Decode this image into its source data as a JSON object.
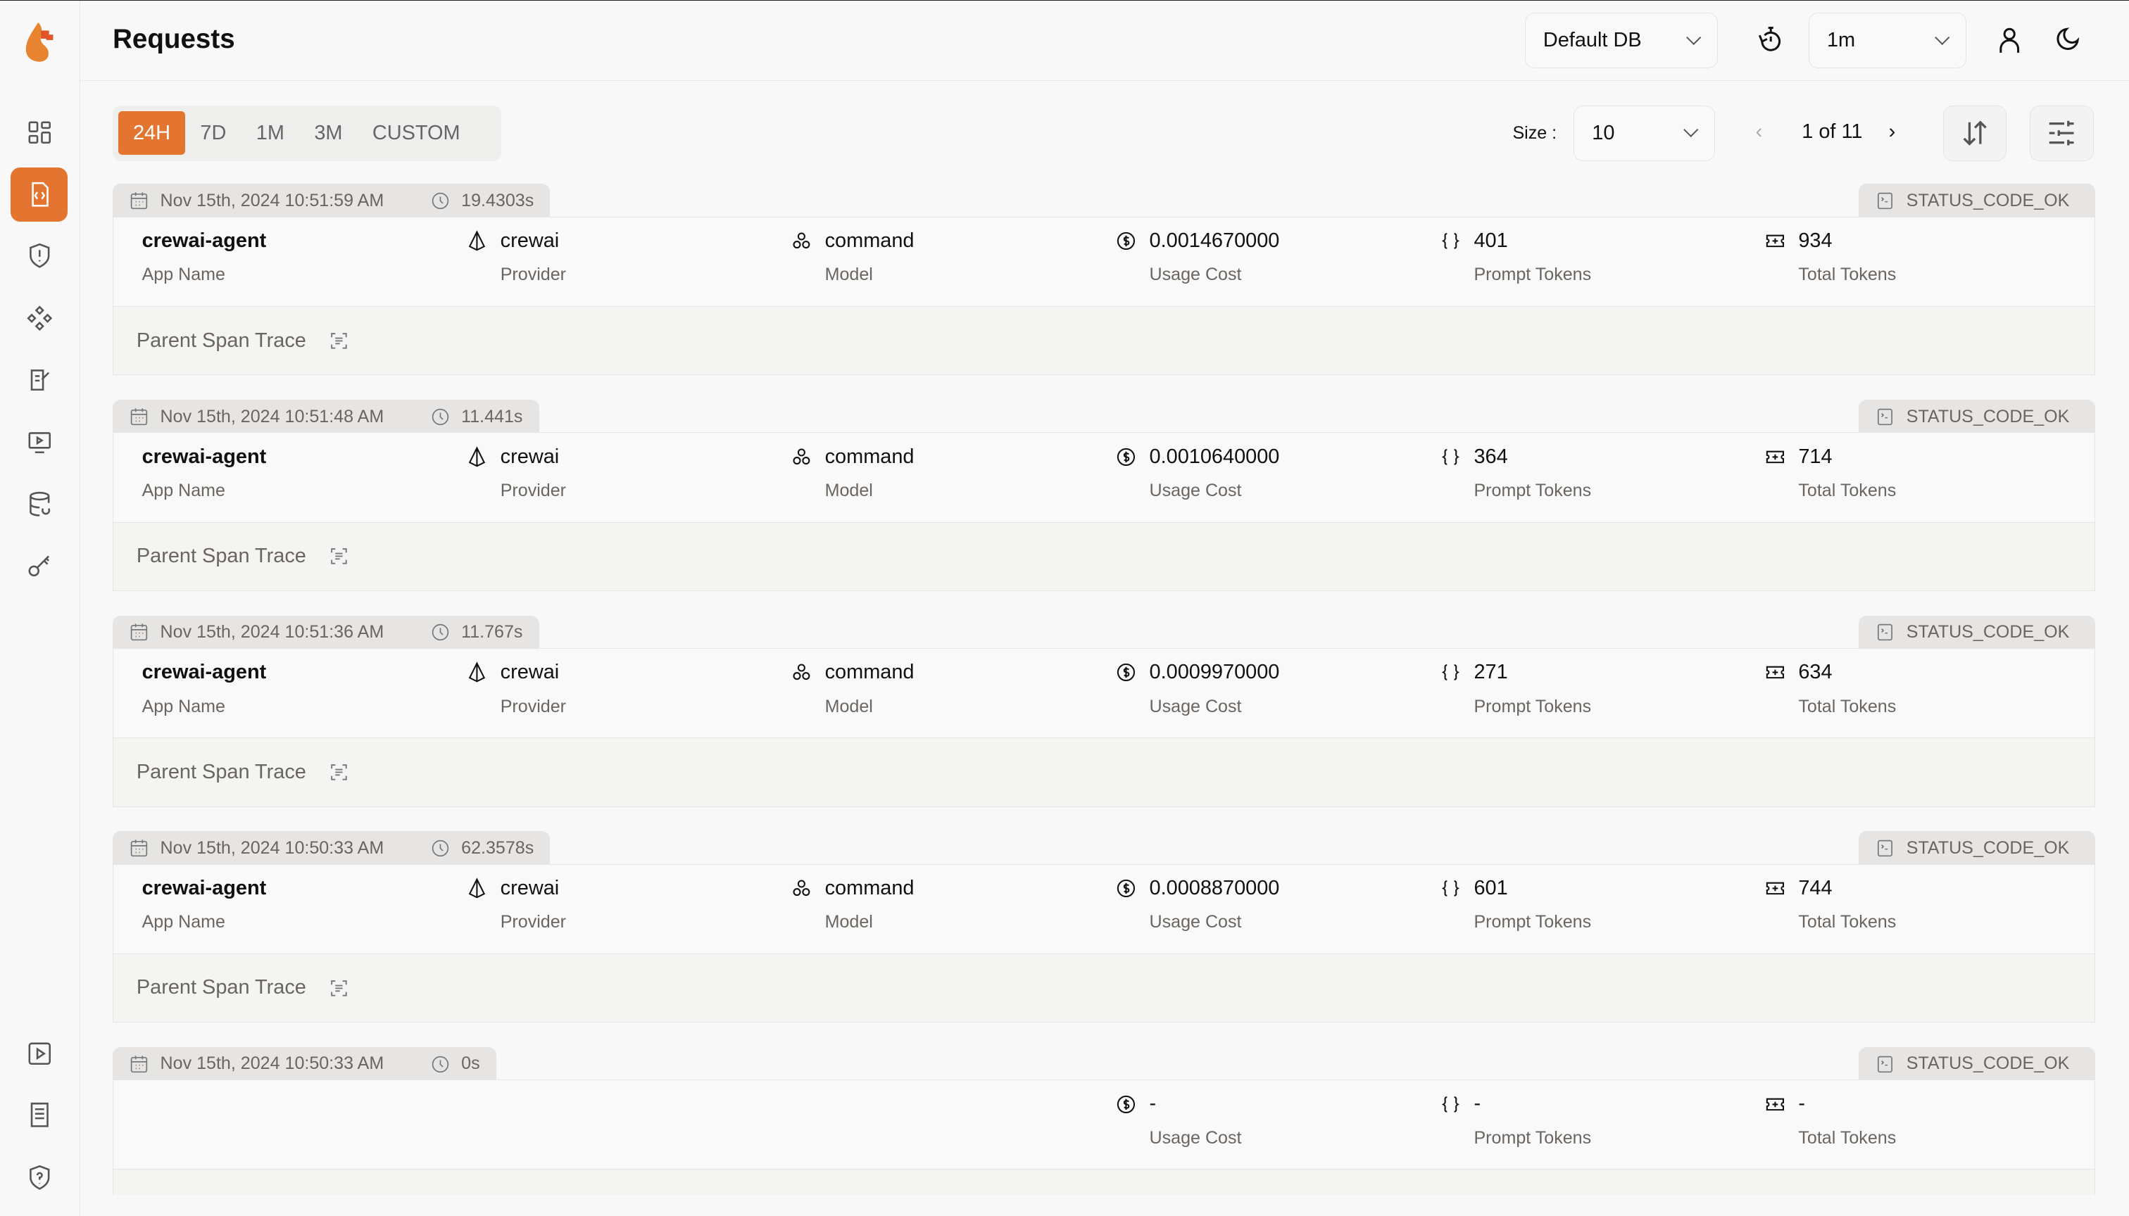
{
  "header": {
    "title": "Requests",
    "db_select": "Default DB",
    "refresh_select": "1m"
  },
  "sidebar": {
    "items": [
      "dashboard",
      "requests",
      "exceptions",
      "prompt-hub",
      "evaluations",
      "vault",
      "openground",
      "database",
      "api-keys"
    ],
    "bottom": [
      "play",
      "docs",
      "security"
    ]
  },
  "filters": {
    "ranges": [
      "24H",
      "7D",
      "1M",
      "3M",
      "CUSTOM"
    ],
    "active": "24H",
    "size_label": "Size :",
    "size": "10",
    "page": "1 of 11"
  },
  "labels": {
    "app": "App Name",
    "provider": "Provider",
    "model": "Model",
    "cost": "Usage Cost",
    "prompt": "Prompt Tokens",
    "total": "Total Tokens",
    "parent": "Parent Span Trace"
  },
  "colors": {
    "accent": "#e37530"
  },
  "requests": [
    {
      "time": "Nov 15th, 2024 10:51:59 AM",
      "duration": "19.4303s",
      "status": "STATUS_CODE_OK",
      "app": "crewai-agent",
      "provider": "crewai",
      "model": "command",
      "cost": "0.0014670000",
      "prompt_tokens": "401",
      "total_tokens": "934"
    },
    {
      "time": "Nov 15th, 2024 10:51:48 AM",
      "duration": "11.441s",
      "status": "STATUS_CODE_OK",
      "app": "crewai-agent",
      "provider": "crewai",
      "model": "command",
      "cost": "0.0010640000",
      "prompt_tokens": "364",
      "total_tokens": "714"
    },
    {
      "time": "Nov 15th, 2024 10:51:36 AM",
      "duration": "11.767s",
      "status": "STATUS_CODE_OK",
      "app": "crewai-agent",
      "provider": "crewai",
      "model": "command",
      "cost": "0.0009970000",
      "prompt_tokens": "271",
      "total_tokens": "634"
    },
    {
      "time": "Nov 15th, 2024 10:50:33 AM",
      "duration": "62.3578s",
      "status": "STATUS_CODE_OK",
      "app": "crewai-agent",
      "provider": "crewai",
      "model": "command",
      "cost": "0.0008870000",
      "prompt_tokens": "601",
      "total_tokens": "744"
    },
    {
      "time": "Nov 15th, 2024 10:50:33 AM",
      "duration": "0s",
      "status": "STATUS_CODE_OK",
      "cost": "-",
      "prompt_tokens": "-",
      "total_tokens": "-"
    }
  ]
}
